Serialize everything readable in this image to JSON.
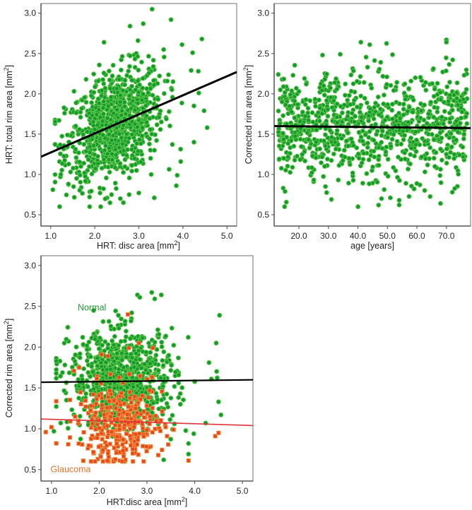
{
  "chart_data": [
    {
      "id": "panel-a",
      "type": "scatter",
      "title": "",
      "xlabel": "HRT: disc area [mm",
      "xlabel_sup": "2",
      "xlabel_end": "]",
      "ylabel": "HRT: total rim area [mm",
      "ylabel_sup": "2",
      "ylabel_end": "]",
      "xlim": [
        0.78,
        5.22
      ],
      "ylim": [
        0.36,
        3.12
      ],
      "xticks": [
        1.0,
        2.0,
        3.0,
        4.0,
        5.0
      ],
      "xtick_labels": [
        "1.0",
        "2.0",
        "3.0",
        "4.0",
        "5.0"
      ],
      "yticks": [
        0.5,
        1.0,
        1.5,
        2.0,
        2.5,
        3.0
      ],
      "ytick_labels": [
        "0.5",
        "1.0",
        "1.5",
        "2.0",
        "2.5",
        "3.0"
      ],
      "grid": false,
      "legend": "none",
      "regression_line": {
        "x": [
          0.78,
          5.22
        ],
        "y": [
          1.22,
          2.27
        ],
        "color": "#000000"
      },
      "series": [
        {
          "name": "Normal",
          "marker": "circle",
          "color": "#129a2e",
          "generated": {
            "count": 900,
            "x_mean": 2.45,
            "x_sd": 0.55,
            "slope": 0.237,
            "intercept": 1.035,
            "y_sd": 0.33
          },
          "points": [
            [
              1.05,
              0.81
            ],
            [
              1.2,
              1.16
            ],
            [
              1.22,
              0.97
            ],
            [
              1.45,
              1.03
            ],
            [
              1.6,
              1.02
            ],
            [
              1.82,
              0.95
            ],
            [
              2.12,
              0.77
            ],
            [
              2.38,
              0.75
            ],
            [
              2.58,
              0.7
            ],
            [
              2.65,
              0.65
            ],
            [
              2.78,
              0.75
            ],
            [
              3.0,
              0.77
            ],
            [
              3.35,
              0.71
            ],
            [
              3.28,
              1.0
            ],
            [
              3.85,
              0.86
            ],
            [
              3.87,
              0.99
            ],
            [
              3.3,
              3.05
            ],
            [
              4.5,
              3.13
            ],
            [
              4.43,
              2.68
            ],
            [
              3.73,
              2.92
            ],
            [
              3.1,
              2.87
            ],
            [
              2.8,
              2.84
            ],
            [
              2.98,
              2.66
            ],
            [
              4.22,
              2.51
            ],
            [
              3.98,
              2.61
            ],
            [
              4.35,
              2.28
            ],
            [
              4.55,
              1.58
            ],
            [
              4.48,
              1.79
            ],
            [
              4.25,
              1.4
            ],
            [
              4.25,
              1.85
            ],
            [
              3.95,
              1.16
            ],
            [
              4.36,
              2.01
            ]
          ]
        }
      ]
    },
    {
      "id": "panel-b",
      "type": "scatter",
      "title": "",
      "xlabel": "age [years]",
      "ylabel": "Corrected rim area [mm",
      "ylabel_sup": "2",
      "ylabel_end": "]",
      "xlim": [
        11.6,
        78.2
      ],
      "ylim": [
        0.36,
        3.12
      ],
      "xticks": [
        20,
        30,
        40,
        50,
        60,
        70
      ],
      "xtick_labels": [
        "20.0",
        "30.0",
        "40.0",
        "50.0",
        "60.0",
        "70.0"
      ],
      "yticks": [
        0.5,
        1.0,
        1.5,
        2.0,
        2.5,
        3.0
      ],
      "ytick_labels": [
        "0.5",
        "1.0",
        "1.5",
        "2.0",
        "2.5",
        "3.0"
      ],
      "grid": false,
      "legend": "none",
      "regression_line": {
        "x": [
          11.6,
          78.2
        ],
        "y": [
          1.6,
          1.575
        ],
        "color": "#000000"
      },
      "series": [
        {
          "name": "Normal",
          "marker": "circle",
          "color": "#129a2e",
          "generated": {
            "count": 950,
            "x_min": 13,
            "x_max": 77,
            "y_mean": 1.59,
            "y_sd": 0.33
          },
          "points": [
            [
              31,
              0.69
            ],
            [
              47,
              0.62
            ],
            [
              48,
              0.7
            ],
            [
              51,
              0.71
            ],
            [
              54,
              0.68
            ],
            [
              68,
              0.64
            ],
            [
              72,
              0.78
            ],
            [
              41,
              2.64
            ],
            [
              44,
              2.61
            ],
            [
              70,
              2.67
            ],
            [
              70,
              2.64
            ],
            [
              28,
              2.48
            ],
            [
              34,
              2.49
            ],
            [
              13,
              2.24
            ],
            [
              18,
              2.23
            ],
            [
              77,
              1.94
            ],
            [
              76,
              1.18
            ],
            [
              24,
              0.99
            ],
            [
              25,
              0.91
            ],
            [
              29,
              0.85
            ],
            [
              59,
              0.82
            ],
            [
              61,
              0.87
            ]
          ]
        }
      ]
    },
    {
      "id": "panel-c",
      "type": "scatter",
      "title": "",
      "xlabel": "HRT:disc area [mm",
      "xlabel_sup": "2",
      "xlabel_end": "]",
      "ylabel": "Corrected rim area [mm",
      "ylabel_sup": "2",
      "ylabel_end": "]",
      "xlim": [
        0.78,
        5.22
      ],
      "ylim": [
        0.36,
        3.12
      ],
      "xticks": [
        1.0,
        2.0,
        3.0,
        4.0,
        5.0
      ],
      "xtick_labels": [
        "1.0",
        "2.0",
        "3.0",
        "4.0",
        "5.0"
      ],
      "yticks": [
        0.5,
        1.0,
        1.5,
        2.0,
        2.5,
        3.0
      ],
      "ytick_labels": [
        "0.5",
        "1.0",
        "1.5",
        "2.0",
        "2.5",
        "3.0"
      ],
      "grid": false,
      "legend": "none",
      "annotations": [
        {
          "text": "Normal",
          "x": 1.55,
          "y": 2.45,
          "color": "#1e9a30"
        },
        {
          "text": "Glaucoma",
          "x": 0.98,
          "y": 0.47,
          "color": "#e8742c"
        }
      ],
      "regression_lines": [
        {
          "name": "Normal",
          "x": [
            0.78,
            5.22
          ],
          "y": [
            1.57,
            1.6
          ],
          "color": "#000000"
        },
        {
          "name": "Glaucoma",
          "x": [
            0.78,
            5.22
          ],
          "y": [
            1.12,
            1.04
          ],
          "color": "#e0343a"
        }
      ],
      "series": [
        {
          "name": "Normal",
          "marker": "circle",
          "color": "#129a2e",
          "generated": {
            "count": 850,
            "x_mean": 2.5,
            "x_sd": 0.55,
            "y_mean": 1.6,
            "y_sd": 0.3
          },
          "points": [
            [
              1.05,
              0.97
            ],
            [
              3.35,
              0.62
            ],
            [
              3.87,
              0.69
            ],
            [
              3.87,
              0.82
            ],
            [
              4.52,
              2.39
            ],
            [
              4.45,
              2.05
            ],
            [
              4.5,
              1.33
            ],
            [
              4.55,
              1.17
            ],
            [
              3.1,
              2.67
            ],
            [
              3.3,
              2.64
            ],
            [
              2.8,
              2.64
            ],
            [
              2.85,
              2.61
            ],
            [
              4.35,
              1.61
            ],
            [
              4.3,
              1.81
            ],
            [
              4.23,
              1.07
            ],
            [
              3.98,
              0.94
            ]
          ]
        },
        {
          "name": "Glaucoma",
          "marker": "square",
          "color": "#e5461f",
          "generated": {
            "count": 320,
            "x_mean": 2.45,
            "x_sd": 0.45,
            "y_mean": 1.05,
            "y_sd": 0.24
          },
          "points": [
            [
              0.88,
              0.96
            ],
            [
              1.0,
              1.02
            ],
            [
              1.35,
              0.81
            ],
            [
              1.97,
              0.63
            ],
            [
              2.3,
              0.62
            ],
            [
              2.43,
              0.61
            ],
            [
              2.93,
              0.6
            ],
            [
              3.87,
              0.61
            ],
            [
              4.43,
              0.91
            ],
            [
              4.5,
              0.95
            ],
            [
              2.6,
              2.4
            ],
            [
              3.12,
              1.99
            ],
            [
              2.83,
              2.05
            ],
            [
              2.62,
              1.99
            ],
            [
              2.05,
              1.91
            ],
            [
              2.18,
              1.89
            ],
            [
              1.58,
              1.75
            ],
            [
              1.47,
              1.71
            ]
          ]
        }
      ]
    }
  ]
}
